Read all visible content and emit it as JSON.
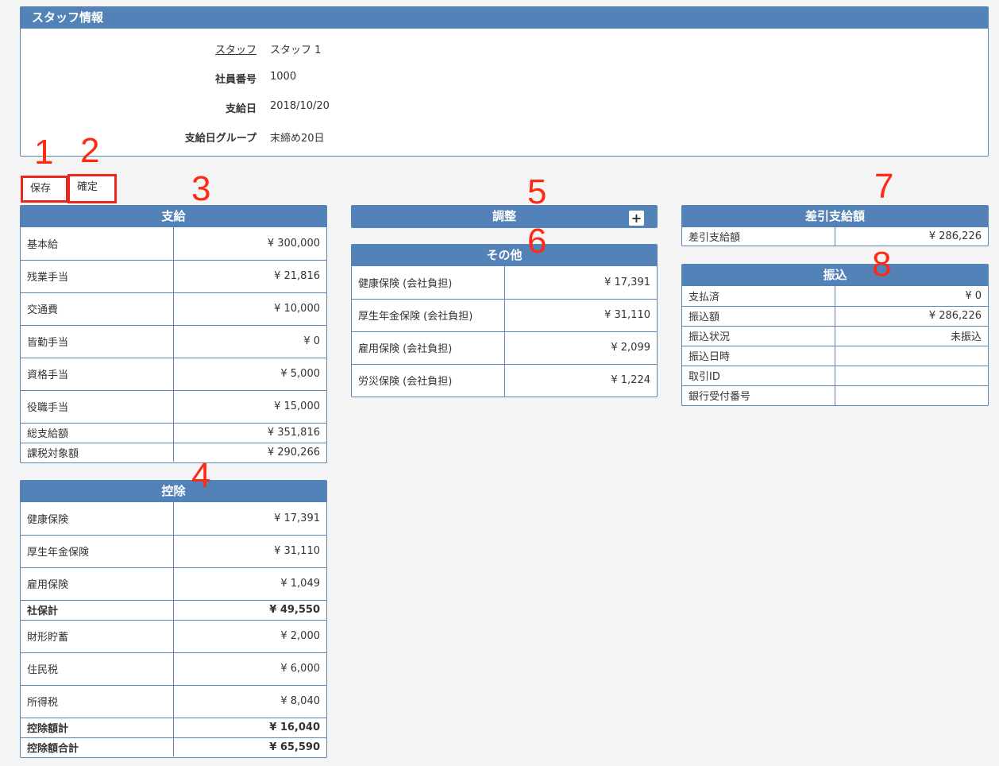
{
  "staff_info": {
    "title": "スタッフ情報",
    "rows": [
      {
        "label": "スタッフ",
        "value": "スタッフ 1"
      },
      {
        "label": "社員番号",
        "value": "1000"
      },
      {
        "label": "支給日",
        "value": "2018/10/20"
      },
      {
        "label": "支給日グループ",
        "value": "末締め20日"
      }
    ]
  },
  "buttons": {
    "save": "保存",
    "confirm": "確定"
  },
  "markers": [
    "1",
    "2",
    "3",
    "4",
    "5",
    "6",
    "7",
    "8"
  ],
  "payment": {
    "title": "支給",
    "rows": [
      {
        "label": "基本給",
        "value": "¥ 300,000"
      },
      {
        "label": "残業手当",
        "value": "¥ 21,816"
      },
      {
        "label": "交通費",
        "value": "¥ 10,000"
      },
      {
        "label": "皆勤手当",
        "value": "¥ 0"
      },
      {
        "label": "資格手当",
        "value": "¥ 5,000"
      },
      {
        "label": "役職手当",
        "value": "¥ 15,000"
      },
      {
        "label": "総支給額",
        "value": "¥ 351,816"
      },
      {
        "label": "課税対象額",
        "value": "¥ 290,266"
      }
    ]
  },
  "deduction": {
    "title": "控除",
    "rows": [
      {
        "label": "健康保険",
        "value": "¥ 17,391"
      },
      {
        "label": "厚生年金保険",
        "value": "¥ 31,110"
      },
      {
        "label": "雇用保険",
        "value": "¥ 1,049"
      },
      {
        "label": "社保計",
        "value": "¥ 49,550"
      },
      {
        "label": "財形貯蓄",
        "value": "¥ 2,000"
      },
      {
        "label": "住民税",
        "value": "¥ 6,000"
      },
      {
        "label": "所得税",
        "value": "¥ 8,040"
      },
      {
        "label": "控除額計",
        "value": "¥ 16,040"
      },
      {
        "label": "控除額合計",
        "value": "¥ 65,590"
      }
    ]
  },
  "adjustment": {
    "title": "調整",
    "add_icon": "plus-icon"
  },
  "other": {
    "title": "その他",
    "rows": [
      {
        "label": "健康保険 (会社負担)",
        "value": "¥ 17,391"
      },
      {
        "label": "厚生年金保険 (会社負担)",
        "value": "¥ 31,110"
      },
      {
        "label": "雇用保険 (会社負担)",
        "value": "¥ 2,099"
      },
      {
        "label": "労災保険 (会社負担)",
        "value": "¥ 1,224"
      }
    ]
  },
  "net_pay": {
    "title": "差引支給額",
    "rows": [
      {
        "label": "差引支給額",
        "value": "¥ 286,226"
      }
    ]
  },
  "transfer": {
    "title": "振込",
    "rows": [
      {
        "label": "支払済",
        "value": "¥ 0"
      },
      {
        "label": "振込額",
        "value": "¥ 286,226"
      },
      {
        "label": "振込状況",
        "value": "未振込"
      },
      {
        "label": "振込日時",
        "value": ""
      },
      {
        "label": "取引ID",
        "value": ""
      },
      {
        "label": "銀行受付番号",
        "value": ""
      }
    ]
  },
  "colors": {
    "header": "#5282b7",
    "border": "#5a86b5",
    "marker": "#ff2a14"
  }
}
